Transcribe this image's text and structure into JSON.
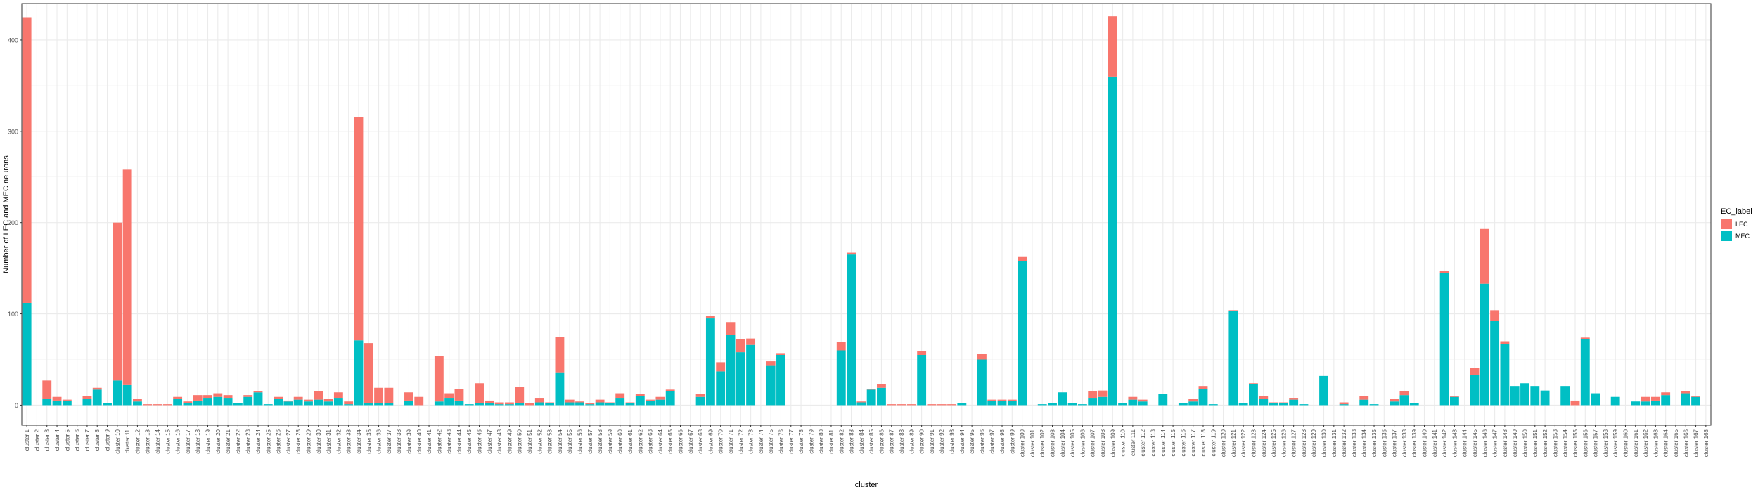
{
  "chart_data": {
    "type": "bar",
    "stacked": true,
    "xlabel": "cluster",
    "ylabel": "Number of LEC and MEC neurons",
    "ylim": [
      0,
      440
    ],
    "yticks": [
      0,
      100,
      200,
      300,
      400
    ],
    "grid": true,
    "legend": {
      "title": "EC_label",
      "position": "right",
      "entries": [
        {
          "name": "LEC",
          "color": "#F8766D"
        },
        {
          "name": "MEC",
          "color": "#00BFC4"
        }
      ]
    },
    "categories": [
      "cluster 1",
      "cluster 2",
      "cluster 3",
      "cluster 4",
      "cluster 5",
      "cluster 6",
      "cluster 7",
      "cluster 8",
      "cluster 9",
      "cluster 10",
      "cluster 11",
      "cluster 12",
      "cluster 13",
      "cluster 14",
      "cluster 15",
      "cluster 16",
      "cluster 17",
      "cluster 18",
      "cluster 19",
      "cluster 20",
      "cluster 21",
      "cluster 22",
      "cluster 23",
      "cluster 24",
      "cluster 25",
      "cluster 26",
      "cluster 27",
      "cluster 28",
      "cluster 29",
      "cluster 30",
      "cluster 31",
      "cluster 32",
      "cluster 33",
      "cluster 34",
      "cluster 35",
      "cluster 36",
      "cluster 37",
      "cluster 38",
      "cluster 39",
      "cluster 40",
      "cluster 41",
      "cluster 42",
      "cluster 43",
      "cluster 44",
      "cluster 45",
      "cluster 46",
      "cluster 47",
      "cluster 48",
      "cluster 49",
      "cluster 50",
      "cluster 51",
      "cluster 52",
      "cluster 53",
      "cluster 54",
      "cluster 55",
      "cluster 56",
      "cluster 57",
      "cluster 58",
      "cluster 59",
      "cluster 60",
      "cluster 61",
      "cluster 62",
      "cluster 63",
      "cluster 64",
      "cluster 65",
      "cluster 66",
      "cluster 67",
      "cluster 68",
      "cluster 69",
      "cluster 70",
      "cluster 71",
      "cluster 72",
      "cluster 73",
      "cluster 74",
      "cluster 75",
      "cluster 76",
      "cluster 77",
      "cluster 78",
      "cluster 79",
      "cluster 80",
      "cluster 81",
      "cluster 82",
      "cluster 83",
      "cluster 84",
      "cluster 85",
      "cluster 86",
      "cluster 87",
      "cluster 88",
      "cluster 89",
      "cluster 90",
      "cluster 91",
      "cluster 92",
      "cluster 93",
      "cluster 94",
      "cluster 95",
      "cluster 96",
      "cluster 97",
      "cluster 98",
      "cluster 99",
      "cluster 100",
      "cluster 101",
      "cluster 102",
      "cluster 103",
      "cluster 104",
      "cluster 105",
      "cluster 106",
      "cluster 107",
      "cluster 108",
      "cluster 109",
      "cluster 110",
      "cluster 111",
      "cluster 112",
      "cluster 113",
      "cluster 114",
      "cluster 115",
      "cluster 116",
      "cluster 117",
      "cluster 118",
      "cluster 119",
      "cluster 120",
      "cluster 121",
      "cluster 122",
      "cluster 123",
      "cluster 124",
      "cluster 125",
      "cluster 126",
      "cluster 127",
      "cluster 128",
      "cluster 129",
      "cluster 130",
      "cluster 131",
      "cluster 132",
      "cluster 133",
      "cluster 134",
      "cluster 135",
      "cluster 136",
      "cluster 137",
      "cluster 138",
      "cluster 139",
      "cluster 140",
      "cluster 141",
      "cluster 142",
      "cluster 143",
      "cluster 144",
      "cluster 145",
      "cluster 146",
      "cluster 147",
      "cluster 148",
      "cluster 149",
      "cluster 150",
      "cluster 151",
      "cluster 152",
      "cluster 153",
      "cluster 154",
      "cluster 155",
      "cluster 156",
      "cluster 157",
      "cluster 158",
      "cluster 159",
      "cluster 160",
      "cluster 161",
      "cluster 162",
      "cluster 163",
      "cluster 164",
      "cluster 165",
      "cluster 166",
      "cluster 167",
      "cluster 168"
    ],
    "series": [
      {
        "name": "MEC",
        "color": "#00BFC4",
        "values": [
          112,
          0,
          7,
          5,
          5,
          0,
          7,
          17,
          2,
          27,
          22,
          4,
          0,
          0,
          0,
          7,
          2,
          5,
          8,
          9,
          8,
          2,
          9,
          14,
          1,
          7,
          4,
          6,
          4,
          6,
          4,
          8,
          1,
          71,
          2,
          2,
          2,
          0,
          5,
          0,
          0,
          4,
          8,
          5,
          1,
          2,
          2,
          1,
          1,
          2,
          0,
          3,
          2,
          36,
          3,
          3,
          1,
          3,
          2,
          8,
          2,
          10,
          5,
          6,
          15,
          0,
          0,
          9,
          95,
          37,
          77,
          58,
          66,
          0,
          43,
          55,
          0,
          0,
          0,
          0,
          0,
          60,
          165,
          3,
          17,
          19,
          0,
          0,
          0,
          55,
          0,
          0,
          0,
          2,
          0,
          50,
          5,
          5,
          5,
          158,
          0,
          1,
          2,
          14,
          2,
          1,
          8,
          9,
          360,
          2,
          6,
          4,
          0,
          12,
          0,
          2,
          4,
          18,
          1,
          0,
          103,
          2,
          23,
          7,
          2,
          2,
          6,
          1,
          0,
          32,
          0,
          1,
          0,
          6,
          1,
          0,
          4,
          11,
          2,
          0,
          0,
          145,
          9,
          0,
          33,
          133,
          92,
          67,
          21,
          24,
          21,
          16,
          0,
          21,
          0,
          72,
          13,
          0,
          9,
          0,
          4,
          4,
          5,
          11,
          0,
          13,
          9,
          0
        ]
      },
      {
        "name": "LEC",
        "color": "#F8766D",
        "values": [
          313,
          0,
          20,
          4,
          1,
          0,
          3,
          2,
          0,
          173,
          236,
          3,
          1,
          1,
          1,
          2,
          2,
          6,
          3,
          4,
          3,
          0,
          2,
          1,
          0,
          2,
          1,
          3,
          2,
          9,
          3,
          6,
          3,
          245,
          66,
          17,
          17,
          0,
          9,
          9,
          0,
          50,
          5,
          13,
          0,
          22,
          3,
          2,
          2,
          18,
          2,
          5,
          1,
          39,
          3,
          1,
          1,
          3,
          1,
          5,
          1,
          2,
          1,
          3,
          2,
          0,
          0,
          3,
          3,
          10,
          14,
          14,
          7,
          0,
          5,
          2,
          0,
          0,
          0,
          0,
          0,
          9,
          2,
          1,
          1,
          4,
          1,
          1,
          1,
          4,
          1,
          1,
          1,
          0,
          0,
          6,
          1,
          1,
          1,
          5,
          0,
          0,
          0,
          0,
          0,
          0,
          7,
          7,
          66,
          0,
          3,
          2,
          0,
          0,
          0,
          0,
          3,
          3,
          0,
          0,
          1,
          0,
          1,
          3,
          1,
          1,
          2,
          0,
          0,
          0,
          0,
          2,
          0,
          4,
          0,
          0,
          3,
          4,
          0,
          0,
          0,
          2,
          1,
          0,
          8,
          60,
          12,
          3,
          0,
          0,
          0,
          0,
          0,
          0,
          5,
          2,
          0,
          0,
          0,
          0,
          0,
          5,
          4,
          3,
          0,
          2,
          1,
          0
        ]
      }
    ]
  }
}
